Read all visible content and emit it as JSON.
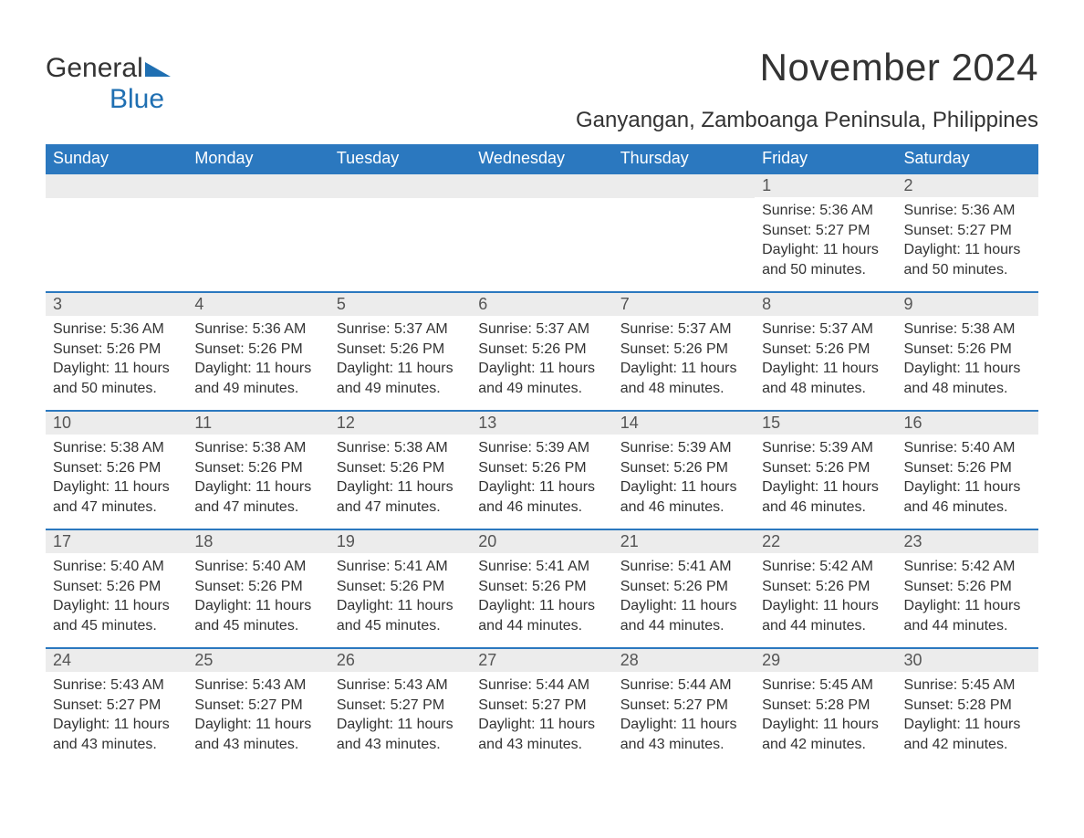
{
  "logo": {
    "word1": "General",
    "word2": "Blue",
    "accent_color": "#1f6fb2"
  },
  "title": "November 2024",
  "location": "Ganyangan, Zamboanga Peninsula, Philippines",
  "colors": {
    "header_bg": "#2b78bf",
    "header_text": "#ffffff",
    "daynum_bg": "#ececec",
    "daynum_text": "#555555",
    "body_text": "#333333",
    "row_border": "#2b78bf",
    "page_bg": "#ffffff"
  },
  "fonts": {
    "title_size": 42,
    "location_size": 24,
    "header_size": 18,
    "daynum_size": 18,
    "body_size": 16
  },
  "weekdays": [
    "Sunday",
    "Monday",
    "Tuesday",
    "Wednesday",
    "Thursday",
    "Friday",
    "Saturday"
  ],
  "labels": {
    "sunrise": "Sunrise:",
    "sunset": "Sunset:",
    "daylight": "Daylight:"
  },
  "weeks": [
    [
      null,
      null,
      null,
      null,
      null,
      {
        "n": "1",
        "sunrise": "5:36 AM",
        "sunset": "5:27 PM",
        "daylight": "11 hours and 50 minutes."
      },
      {
        "n": "2",
        "sunrise": "5:36 AM",
        "sunset": "5:27 PM",
        "daylight": "11 hours and 50 minutes."
      }
    ],
    [
      {
        "n": "3",
        "sunrise": "5:36 AM",
        "sunset": "5:26 PM",
        "daylight": "11 hours and 50 minutes."
      },
      {
        "n": "4",
        "sunrise": "5:36 AM",
        "sunset": "5:26 PM",
        "daylight": "11 hours and 49 minutes."
      },
      {
        "n": "5",
        "sunrise": "5:37 AM",
        "sunset": "5:26 PM",
        "daylight": "11 hours and 49 minutes."
      },
      {
        "n": "6",
        "sunrise": "5:37 AM",
        "sunset": "5:26 PM",
        "daylight": "11 hours and 49 minutes."
      },
      {
        "n": "7",
        "sunrise": "5:37 AM",
        "sunset": "5:26 PM",
        "daylight": "11 hours and 48 minutes."
      },
      {
        "n": "8",
        "sunrise": "5:37 AM",
        "sunset": "5:26 PM",
        "daylight": "11 hours and 48 minutes."
      },
      {
        "n": "9",
        "sunrise": "5:38 AM",
        "sunset": "5:26 PM",
        "daylight": "11 hours and 48 minutes."
      }
    ],
    [
      {
        "n": "10",
        "sunrise": "5:38 AM",
        "sunset": "5:26 PM",
        "daylight": "11 hours and 47 minutes."
      },
      {
        "n": "11",
        "sunrise": "5:38 AM",
        "sunset": "5:26 PM",
        "daylight": "11 hours and 47 minutes."
      },
      {
        "n": "12",
        "sunrise": "5:38 AM",
        "sunset": "5:26 PM",
        "daylight": "11 hours and 47 minutes."
      },
      {
        "n": "13",
        "sunrise": "5:39 AM",
        "sunset": "5:26 PM",
        "daylight": "11 hours and 46 minutes."
      },
      {
        "n": "14",
        "sunrise": "5:39 AM",
        "sunset": "5:26 PM",
        "daylight": "11 hours and 46 minutes."
      },
      {
        "n": "15",
        "sunrise": "5:39 AM",
        "sunset": "5:26 PM",
        "daylight": "11 hours and 46 minutes."
      },
      {
        "n": "16",
        "sunrise": "5:40 AM",
        "sunset": "5:26 PM",
        "daylight": "11 hours and 46 minutes."
      }
    ],
    [
      {
        "n": "17",
        "sunrise": "5:40 AM",
        "sunset": "5:26 PM",
        "daylight": "11 hours and 45 minutes."
      },
      {
        "n": "18",
        "sunrise": "5:40 AM",
        "sunset": "5:26 PM",
        "daylight": "11 hours and 45 minutes."
      },
      {
        "n": "19",
        "sunrise": "5:41 AM",
        "sunset": "5:26 PM",
        "daylight": "11 hours and 45 minutes."
      },
      {
        "n": "20",
        "sunrise": "5:41 AM",
        "sunset": "5:26 PM",
        "daylight": "11 hours and 44 minutes."
      },
      {
        "n": "21",
        "sunrise": "5:41 AM",
        "sunset": "5:26 PM",
        "daylight": "11 hours and 44 minutes."
      },
      {
        "n": "22",
        "sunrise": "5:42 AM",
        "sunset": "5:26 PM",
        "daylight": "11 hours and 44 minutes."
      },
      {
        "n": "23",
        "sunrise": "5:42 AM",
        "sunset": "5:26 PM",
        "daylight": "11 hours and 44 minutes."
      }
    ],
    [
      {
        "n": "24",
        "sunrise": "5:43 AM",
        "sunset": "5:27 PM",
        "daylight": "11 hours and 43 minutes."
      },
      {
        "n": "25",
        "sunrise": "5:43 AM",
        "sunset": "5:27 PM",
        "daylight": "11 hours and 43 minutes."
      },
      {
        "n": "26",
        "sunrise": "5:43 AM",
        "sunset": "5:27 PM",
        "daylight": "11 hours and 43 minutes."
      },
      {
        "n": "27",
        "sunrise": "5:44 AM",
        "sunset": "5:27 PM",
        "daylight": "11 hours and 43 minutes."
      },
      {
        "n": "28",
        "sunrise": "5:44 AM",
        "sunset": "5:27 PM",
        "daylight": "11 hours and 43 minutes."
      },
      {
        "n": "29",
        "sunrise": "5:45 AM",
        "sunset": "5:28 PM",
        "daylight": "11 hours and 42 minutes."
      },
      {
        "n": "30",
        "sunrise": "5:45 AM",
        "sunset": "5:28 PM",
        "daylight": "11 hours and 42 minutes."
      }
    ]
  ]
}
